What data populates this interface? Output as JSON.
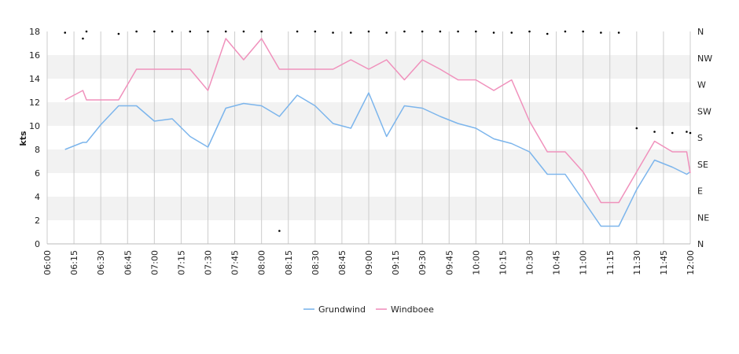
{
  "chart_data": {
    "type": "line",
    "ylabel": "kts",
    "ylim": [
      0,
      18
    ],
    "yticks": [
      "0",
      "2",
      "4",
      "6",
      "8",
      "10",
      "12",
      "14",
      "16",
      "18"
    ],
    "y2ticks": [
      "N",
      "NE",
      "E",
      "SE",
      "S",
      "SW",
      "W",
      "NW",
      "N"
    ],
    "xlim": [
      "06:00",
      "12:00"
    ],
    "xtick_labels": [
      "06:00",
      "06:15",
      "06:30",
      "06:45",
      "07:00",
      "07:15",
      "07:30",
      "07:45",
      "08:00",
      "08:15",
      "08:30",
      "08:45",
      "09:00",
      "09:15",
      "09:30",
      "09:45",
      "10:00",
      "10:15",
      "10:30",
      "10:45",
      "11:00",
      "11:15",
      "11:30",
      "11:45",
      "12:00"
    ],
    "grid": true,
    "legend_position": "bottom",
    "colors": {
      "Grundwind": "#7cb5ec",
      "Windboee": "#f091bc",
      "direction": "#000000",
      "band": "#f2f2f2",
      "grid": "#cccccc"
    },
    "series": [
      {
        "name": "Grundwind",
        "x": [
          "06:10",
          "06:20",
          "06:22",
          "06:30",
          "06:40",
          "06:50",
          "07:00",
          "07:10",
          "07:20",
          "07:30",
          "07:40",
          "07:50",
          "08:00",
          "08:10",
          "08:20",
          "08:30",
          "08:40",
          "08:50",
          "09:00",
          "09:10",
          "09:20",
          "09:30",
          "09:40",
          "09:50",
          "10:00",
          "10:10",
          "10:20",
          "10:30",
          "10:40",
          "10:50",
          "11:00",
          "11:10",
          "11:20",
          "11:30",
          "11:40",
          "11:50",
          "11:58",
          "12:00"
        ],
        "values": [
          8.0,
          8.6,
          8.6,
          10.1,
          11.7,
          11.7,
          10.4,
          10.6,
          9.1,
          8.2,
          11.5,
          11.9,
          11.7,
          10.8,
          12.6,
          11.7,
          10.2,
          9.8,
          12.8,
          9.1,
          11.7,
          11.5,
          10.8,
          10.2,
          9.8,
          8.9,
          8.5,
          7.8,
          5.9,
          5.9,
          3.7,
          1.5,
          1.5,
          4.6,
          7.1,
          6.5,
          5.9,
          6.1
        ]
      },
      {
        "name": "Windboee",
        "x": [
          "06:10",
          "06:20",
          "06:22",
          "06:30",
          "06:40",
          "06:50",
          "07:00",
          "07:10",
          "07:20",
          "07:30",
          "07:40",
          "07:50",
          "08:00",
          "08:10",
          "08:20",
          "08:30",
          "08:40",
          "08:50",
          "09:00",
          "09:10",
          "09:20",
          "09:30",
          "09:40",
          "09:50",
          "10:00",
          "10:10",
          "10:20",
          "10:30",
          "10:40",
          "10:50",
          "11:00",
          "11:10",
          "11:20",
          "11:30",
          "11:40",
          "11:50",
          "11:58",
          "12:00"
        ],
        "values": [
          12.2,
          13.0,
          12.2,
          12.2,
          12.2,
          14.8,
          14.8,
          14.8,
          14.8,
          13.0,
          17.4,
          15.6,
          17.4,
          14.8,
          14.8,
          14.8,
          14.8,
          15.6,
          14.8,
          15.6,
          13.9,
          15.6,
          14.8,
          13.9,
          13.9,
          13.0,
          13.9,
          10.4,
          7.8,
          7.8,
          6.1,
          3.5,
          3.5,
          6.1,
          8.7,
          7.8,
          7.8,
          6.0
        ]
      },
      {
        "name": "direction",
        "x": [
          "06:10",
          "06:20",
          "06:22",
          "06:40",
          "06:50",
          "07:00",
          "07:10",
          "07:20",
          "07:30",
          "07:40",
          "07:50",
          "08:00",
          "08:10",
          "08:20",
          "08:30",
          "08:40",
          "08:50",
          "09:00",
          "09:10",
          "09:20",
          "09:30",
          "09:40",
          "09:50",
          "10:00",
          "10:10",
          "10:20",
          "10:30",
          "10:40",
          "10:50",
          "11:00",
          "11:10",
          "11:20",
          "11:30",
          "11:40",
          "11:50",
          "11:58",
          "12:00"
        ],
        "values": [
          17.9,
          17.4,
          18.0,
          17.8,
          18.0,
          18.0,
          18.0,
          18.0,
          18.0,
          18.0,
          18.0,
          18.0,
          1.1,
          18.0,
          18.0,
          17.9,
          17.9,
          18.0,
          17.9,
          18.0,
          18.0,
          18.0,
          18.0,
          18.0,
          17.9,
          17.9,
          18.0,
          17.8,
          18.0,
          18.0,
          17.9,
          17.9,
          9.8,
          9.5,
          9.4,
          9.5,
          9.4
        ]
      }
    ]
  }
}
